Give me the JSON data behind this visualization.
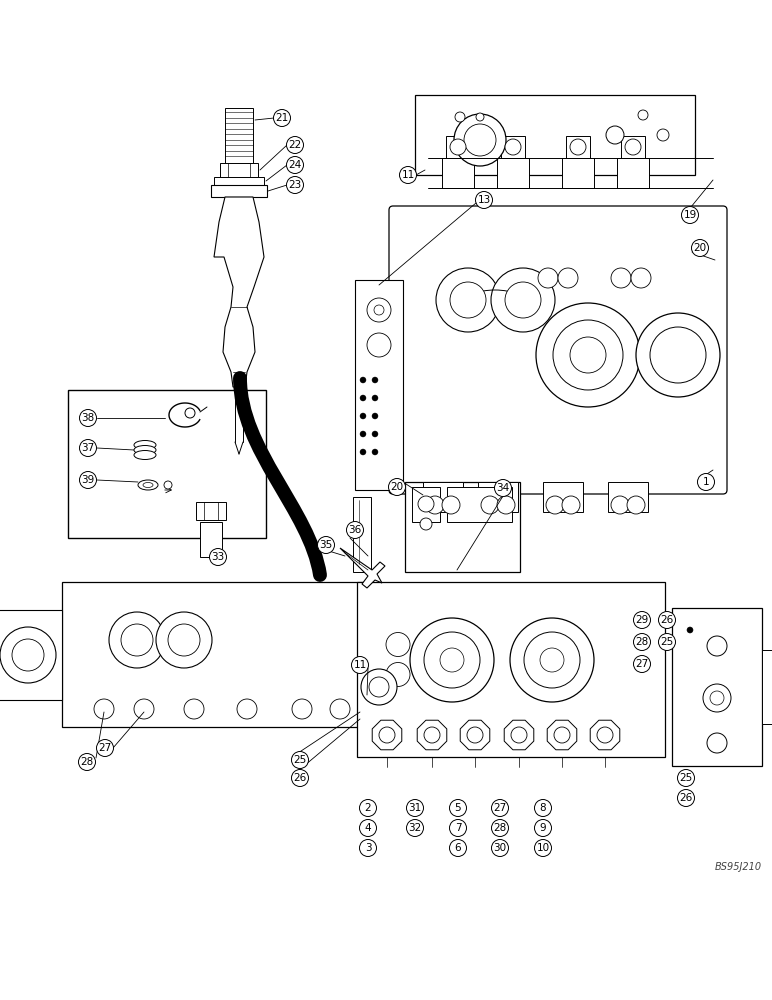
{
  "bg_color": "#ffffff",
  "line_color": "#000000",
  "fig_width": 7.72,
  "fig_height": 10.0,
  "watermark": "BS95J210",
  "lw_main": 0.9,
  "lw_thin": 0.6,
  "circle_r": 8.5,
  "font_size": 7.5
}
